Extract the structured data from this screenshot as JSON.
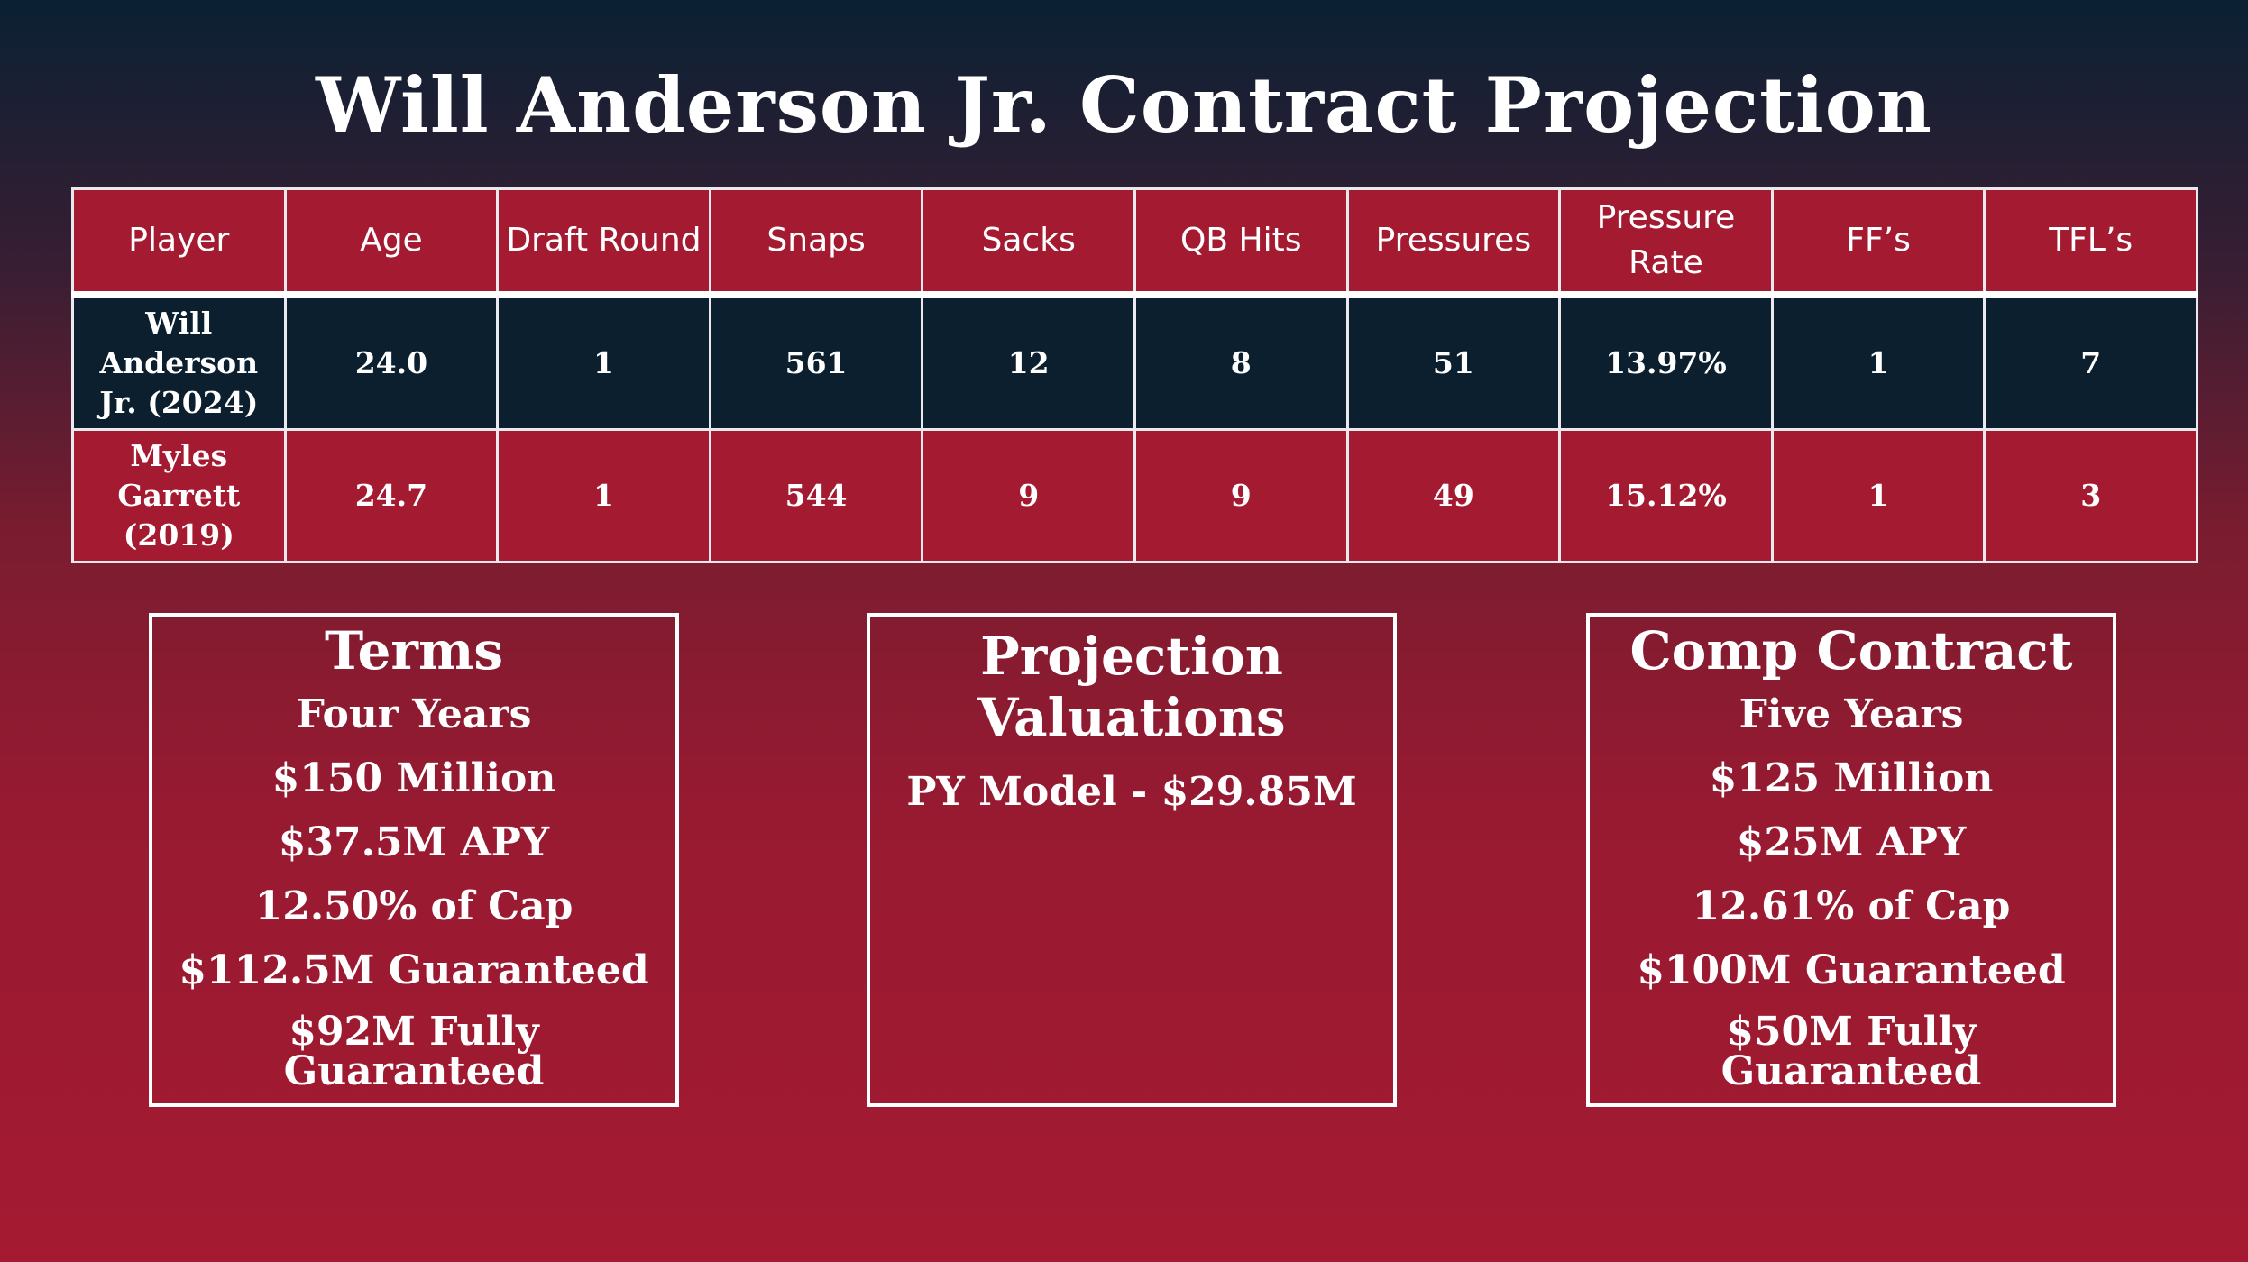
{
  "title": "Will Anderson Jr. Contract Projection",
  "table": {
    "headers": [
      "Player",
      "Age",
      "Draft Round",
      "Snaps",
      "Sacks",
      "QB Hits",
      "Pressures",
      "Pressure Rate",
      "FF’s",
      "TFL’s"
    ],
    "rows": [
      [
        "Will Anderson Jr. (2024)",
        "24.0",
        "1",
        "561",
        "12",
        "8",
        "51",
        "13.97%",
        "1",
        "7"
      ],
      [
        "Myles Garrett (2019)",
        "24.7",
        "1",
        "544",
        "9",
        "9",
        "49",
        "15.12%",
        "1",
        "3"
      ]
    ]
  },
  "terms": {
    "title": "Terms",
    "lines": [
      "Four Years",
      "$150 Million",
      "$37.5M APY",
      "12.50% of Cap",
      "$112.5M Guaranteed",
      "$92M Fully Guaranteed"
    ]
  },
  "projection": {
    "title": "Projection Valuations",
    "lines": [
      "PY Model - $29.85M"
    ]
  },
  "comp": {
    "title": "Comp Contract",
    "lines": [
      "Five Years",
      "$125 Million",
      "$25M APY",
      "12.61% of Cap",
      "$100M Guaranteed",
      "$50M Fully Guaranteed"
    ]
  },
  "colors": {
    "accent_red": "#a41a31",
    "dark_navy": "#0b1f2e",
    "border": "#e9e9ee"
  }
}
